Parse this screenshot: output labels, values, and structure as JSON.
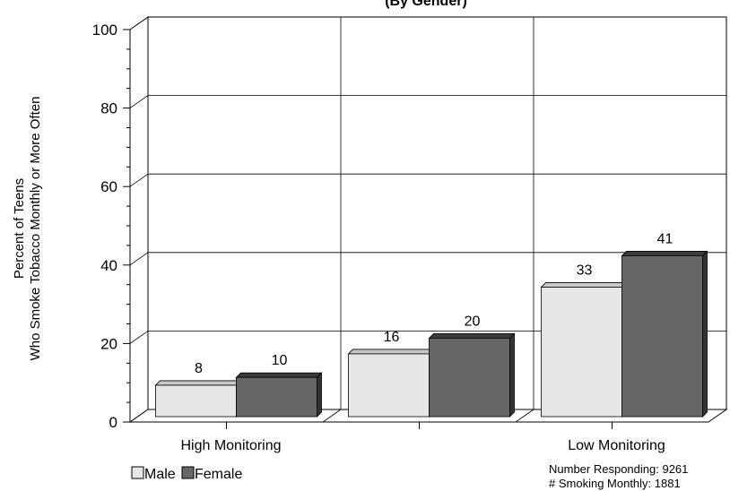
{
  "chart_data": {
    "type": "bar",
    "title": "(By Gender)",
    "ylabel_line1": "Percent of Teens",
    "ylabel_line2": "Who Smoke Tobacco Monthly or More Often",
    "xlabel": "",
    "categories": [
      "High Monitoring",
      "",
      "Low Monitoring"
    ],
    "series": [
      {
        "name": "Male",
        "values": [
          8,
          16,
          33
        ],
        "color": "#e6e6e6",
        "top_color": "#c8c8c8",
        "side_color": "#bdbdbd"
      },
      {
        "name": "Female",
        "values": [
          10,
          20,
          41
        ],
        "color": "#666666",
        "top_color": "#3c3c3c",
        "side_color": "#333333"
      }
    ],
    "data_labels": [
      [
        "8",
        "16",
        "33"
      ],
      [
        "10",
        "20",
        "41"
      ]
    ],
    "ylim": [
      0,
      100
    ],
    "yticks": [
      "0",
      "20",
      "40",
      "60",
      "80",
      "100"
    ],
    "grid": true,
    "legend_position": "bottom-left",
    "footnote_line1": "Number Responding:  9261",
    "footnote_line2": "# Smoking Monthly:  1881"
  }
}
